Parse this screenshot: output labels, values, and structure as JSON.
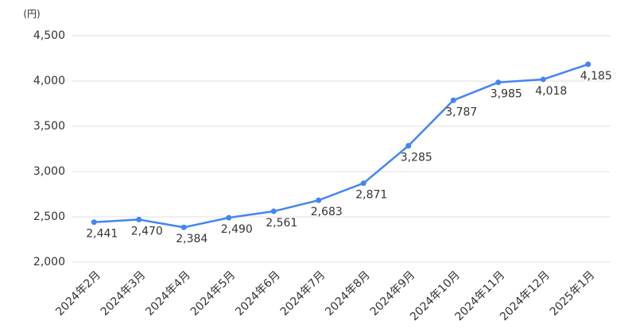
{
  "chart_data": {
    "type": "line",
    "unit_label": "(円)",
    "categories": [
      "2024年2月",
      "2024年3月",
      "2024年4月",
      "2024年5月",
      "2024年6月",
      "2024年7月",
      "2024年8月",
      "2024年9月",
      "2024年10月",
      "2024年11月",
      "2024年12月",
      "2025年1月"
    ],
    "series": [
      {
        "color": "#4285f4",
        "values": [
          2441,
          2470,
          2384,
          2490,
          2561,
          2683,
          2871,
          3285,
          3787,
          3985,
          4018,
          4185
        ],
        "value_labels": [
          "2,441",
          "2,470",
          "2,384",
          "2,490",
          "2,561",
          "2,683",
          "2,871",
          "3,285",
          "3,787",
          "3,985",
          "4,018",
          "4,185"
        ]
      }
    ],
    "ylim": [
      2000,
      4500
    ],
    "yticks": [
      {
        "value": 2000,
        "label": "2,000"
      },
      {
        "value": 2500,
        "label": "2,500"
      },
      {
        "value": 3000,
        "label": "3,000"
      },
      {
        "value": 3500,
        "label": "3,500"
      },
      {
        "value": 4000,
        "label": "4,000"
      },
      {
        "value": 4500,
        "label": "4,500"
      }
    ],
    "grid": true
  }
}
